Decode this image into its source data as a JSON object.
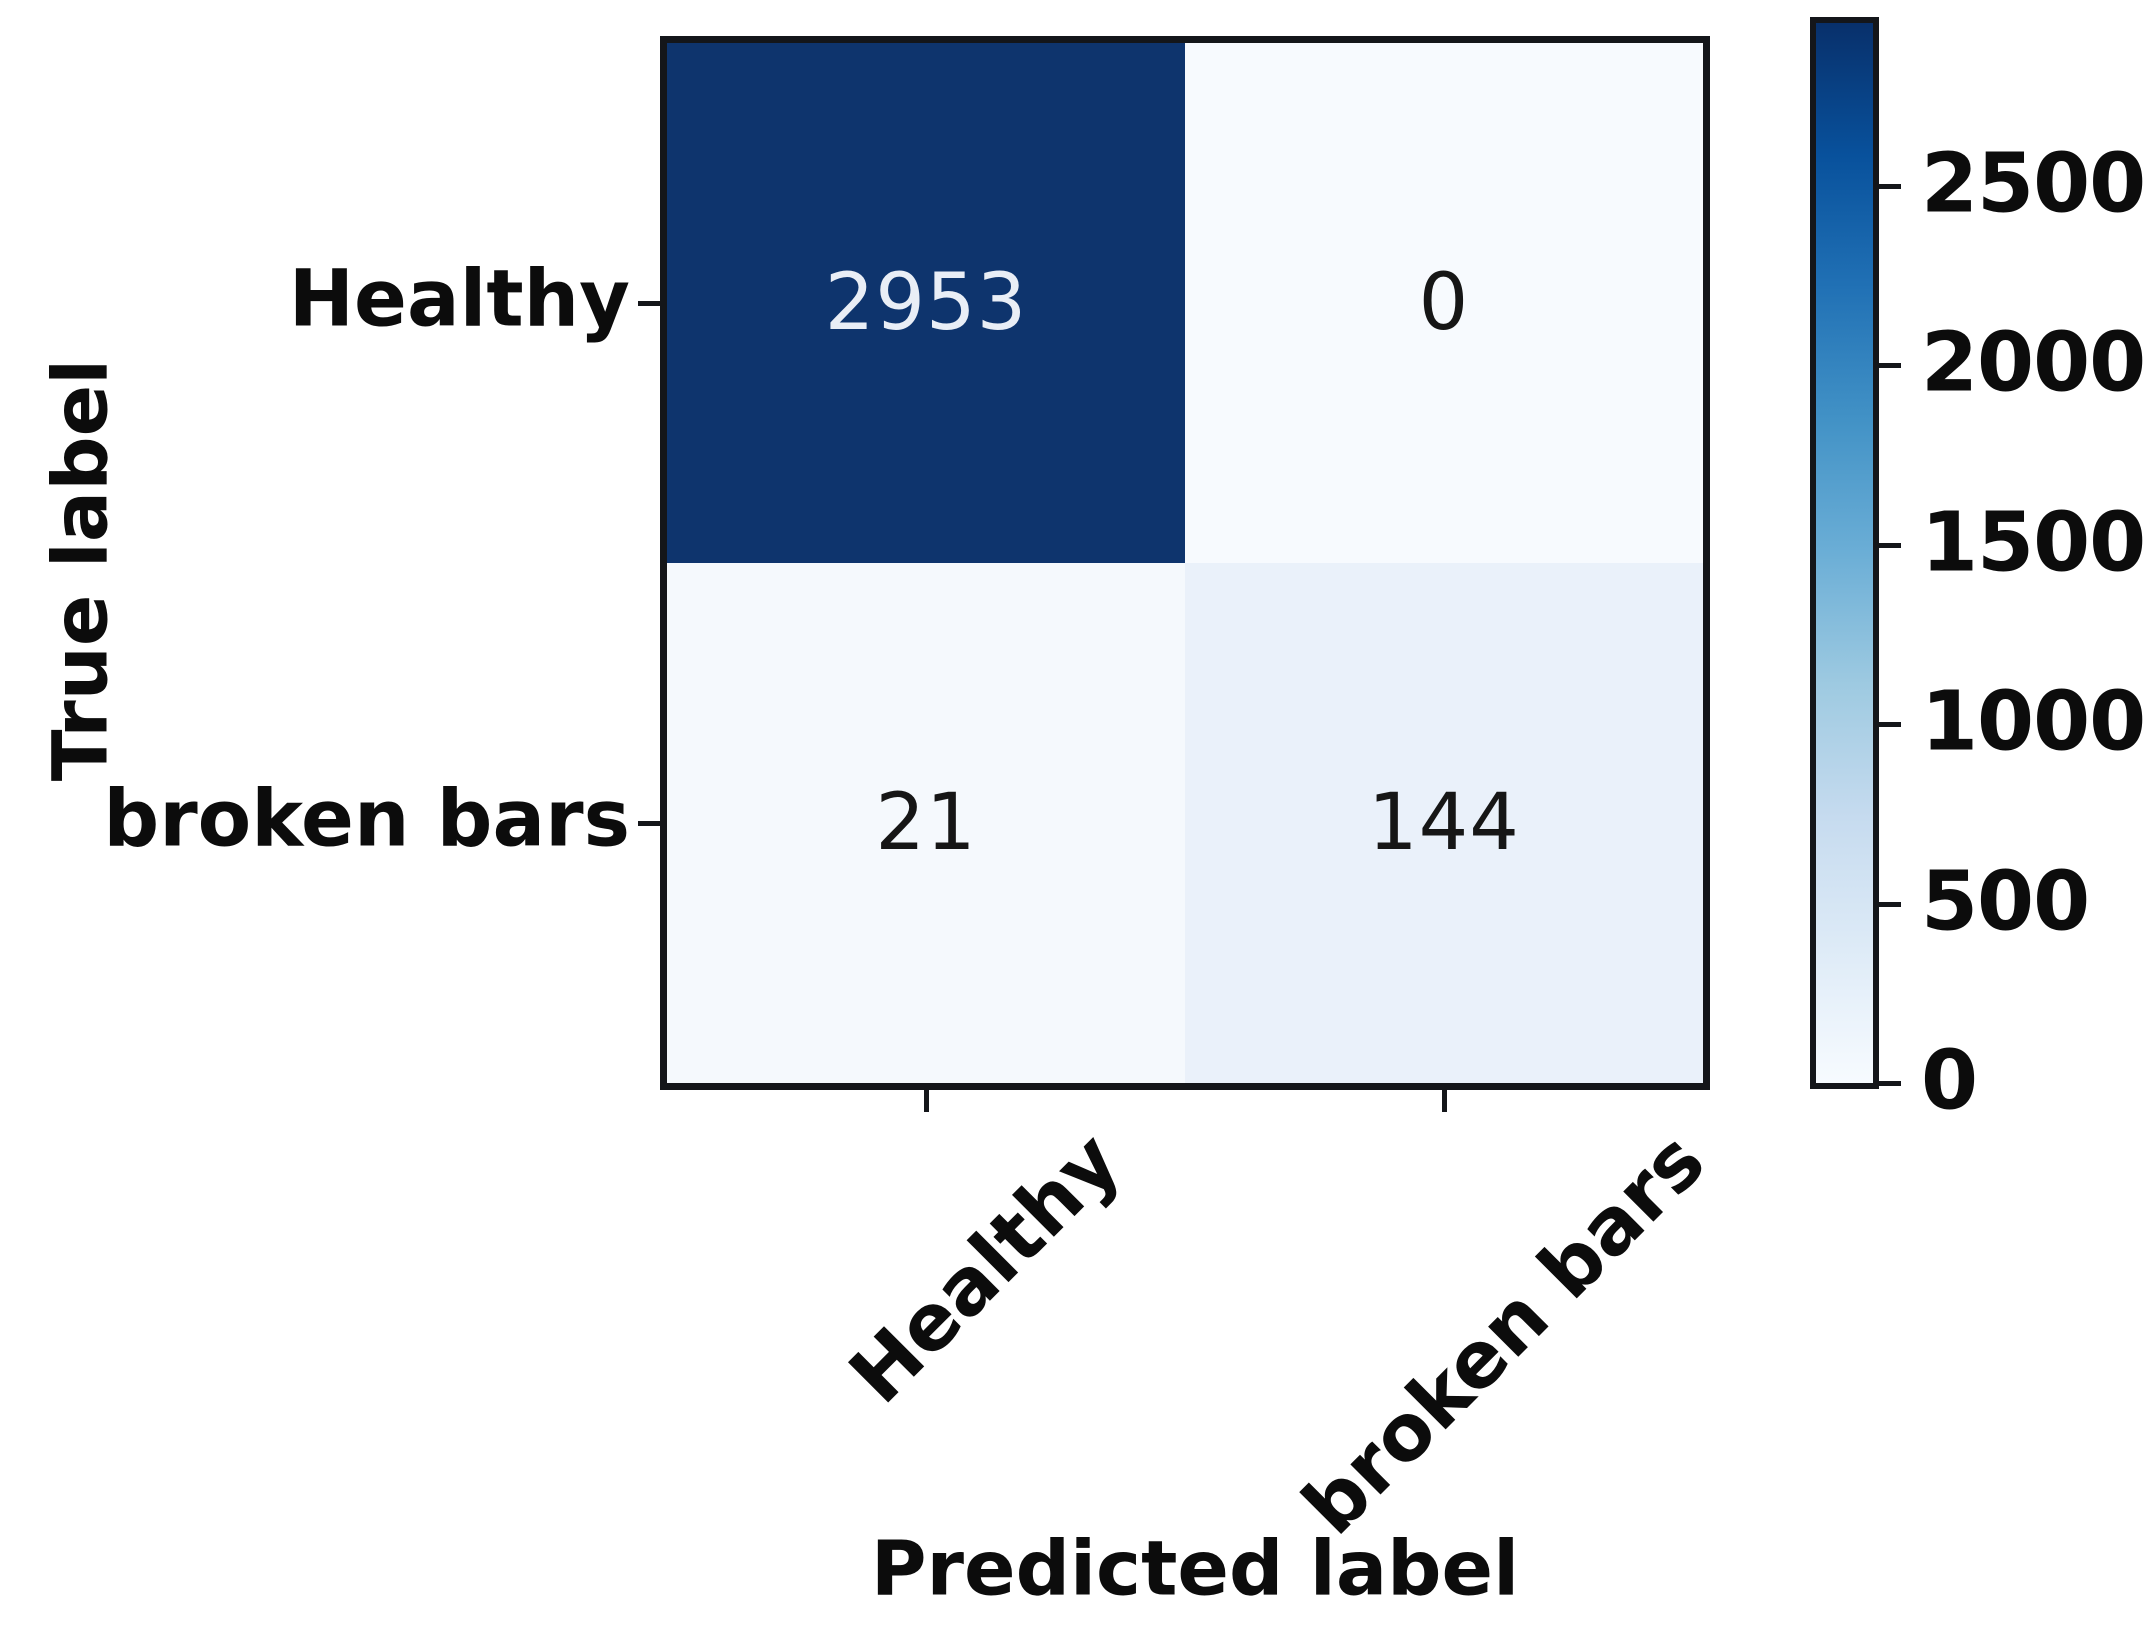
{
  "chart_data": {
    "type": "heatmap",
    "title": "",
    "xlabel": "Predicted label",
    "ylabel": "True label",
    "x_categories": [
      "Healthy",
      "broken bars"
    ],
    "y_categories": [
      "Healthy",
      "broken bars"
    ],
    "matrix": [
      [
        2953,
        0
      ],
      [
        21,
        144
      ]
    ],
    "colormap": "Blues",
    "vmin": 0,
    "vmax": 2953,
    "colorbar_ticks": [
      0,
      500,
      1000,
      1500,
      2000,
      2500
    ],
    "colorbar_tick_labels": [
      "0",
      "500",
      "1000",
      "1500",
      "2000",
      "2500"
    ],
    "legend_position": "right-colorbar",
    "grid": false
  },
  "cells": [
    {
      "row": "Healthy",
      "col": "Healthy",
      "value": "2953",
      "bg": "#0e346d",
      "fg": "#e9eef6"
    },
    {
      "row": "Healthy",
      "col": "broken bars",
      "value": "0",
      "bg": "#f7fafe",
      "fg": "#161616"
    },
    {
      "row": "broken bars",
      "col": "Healthy",
      "value": "21",
      "bg": "#f5f9fd",
      "fg": "#161616"
    },
    {
      "row": "broken bars",
      "col": "broken bars",
      "value": "144",
      "bg": "#eaf1fa",
      "fg": "#161616"
    }
  ],
  "colors": {
    "colormap_low": "#f7fbff",
    "colormap_high": "#08306b",
    "axes_border": "#14161a",
    "text": "#0c0c0c",
    "background": "#ffffff"
  },
  "labels": {
    "xlabel": "Predicted label",
    "ylabel": "True label"
  }
}
